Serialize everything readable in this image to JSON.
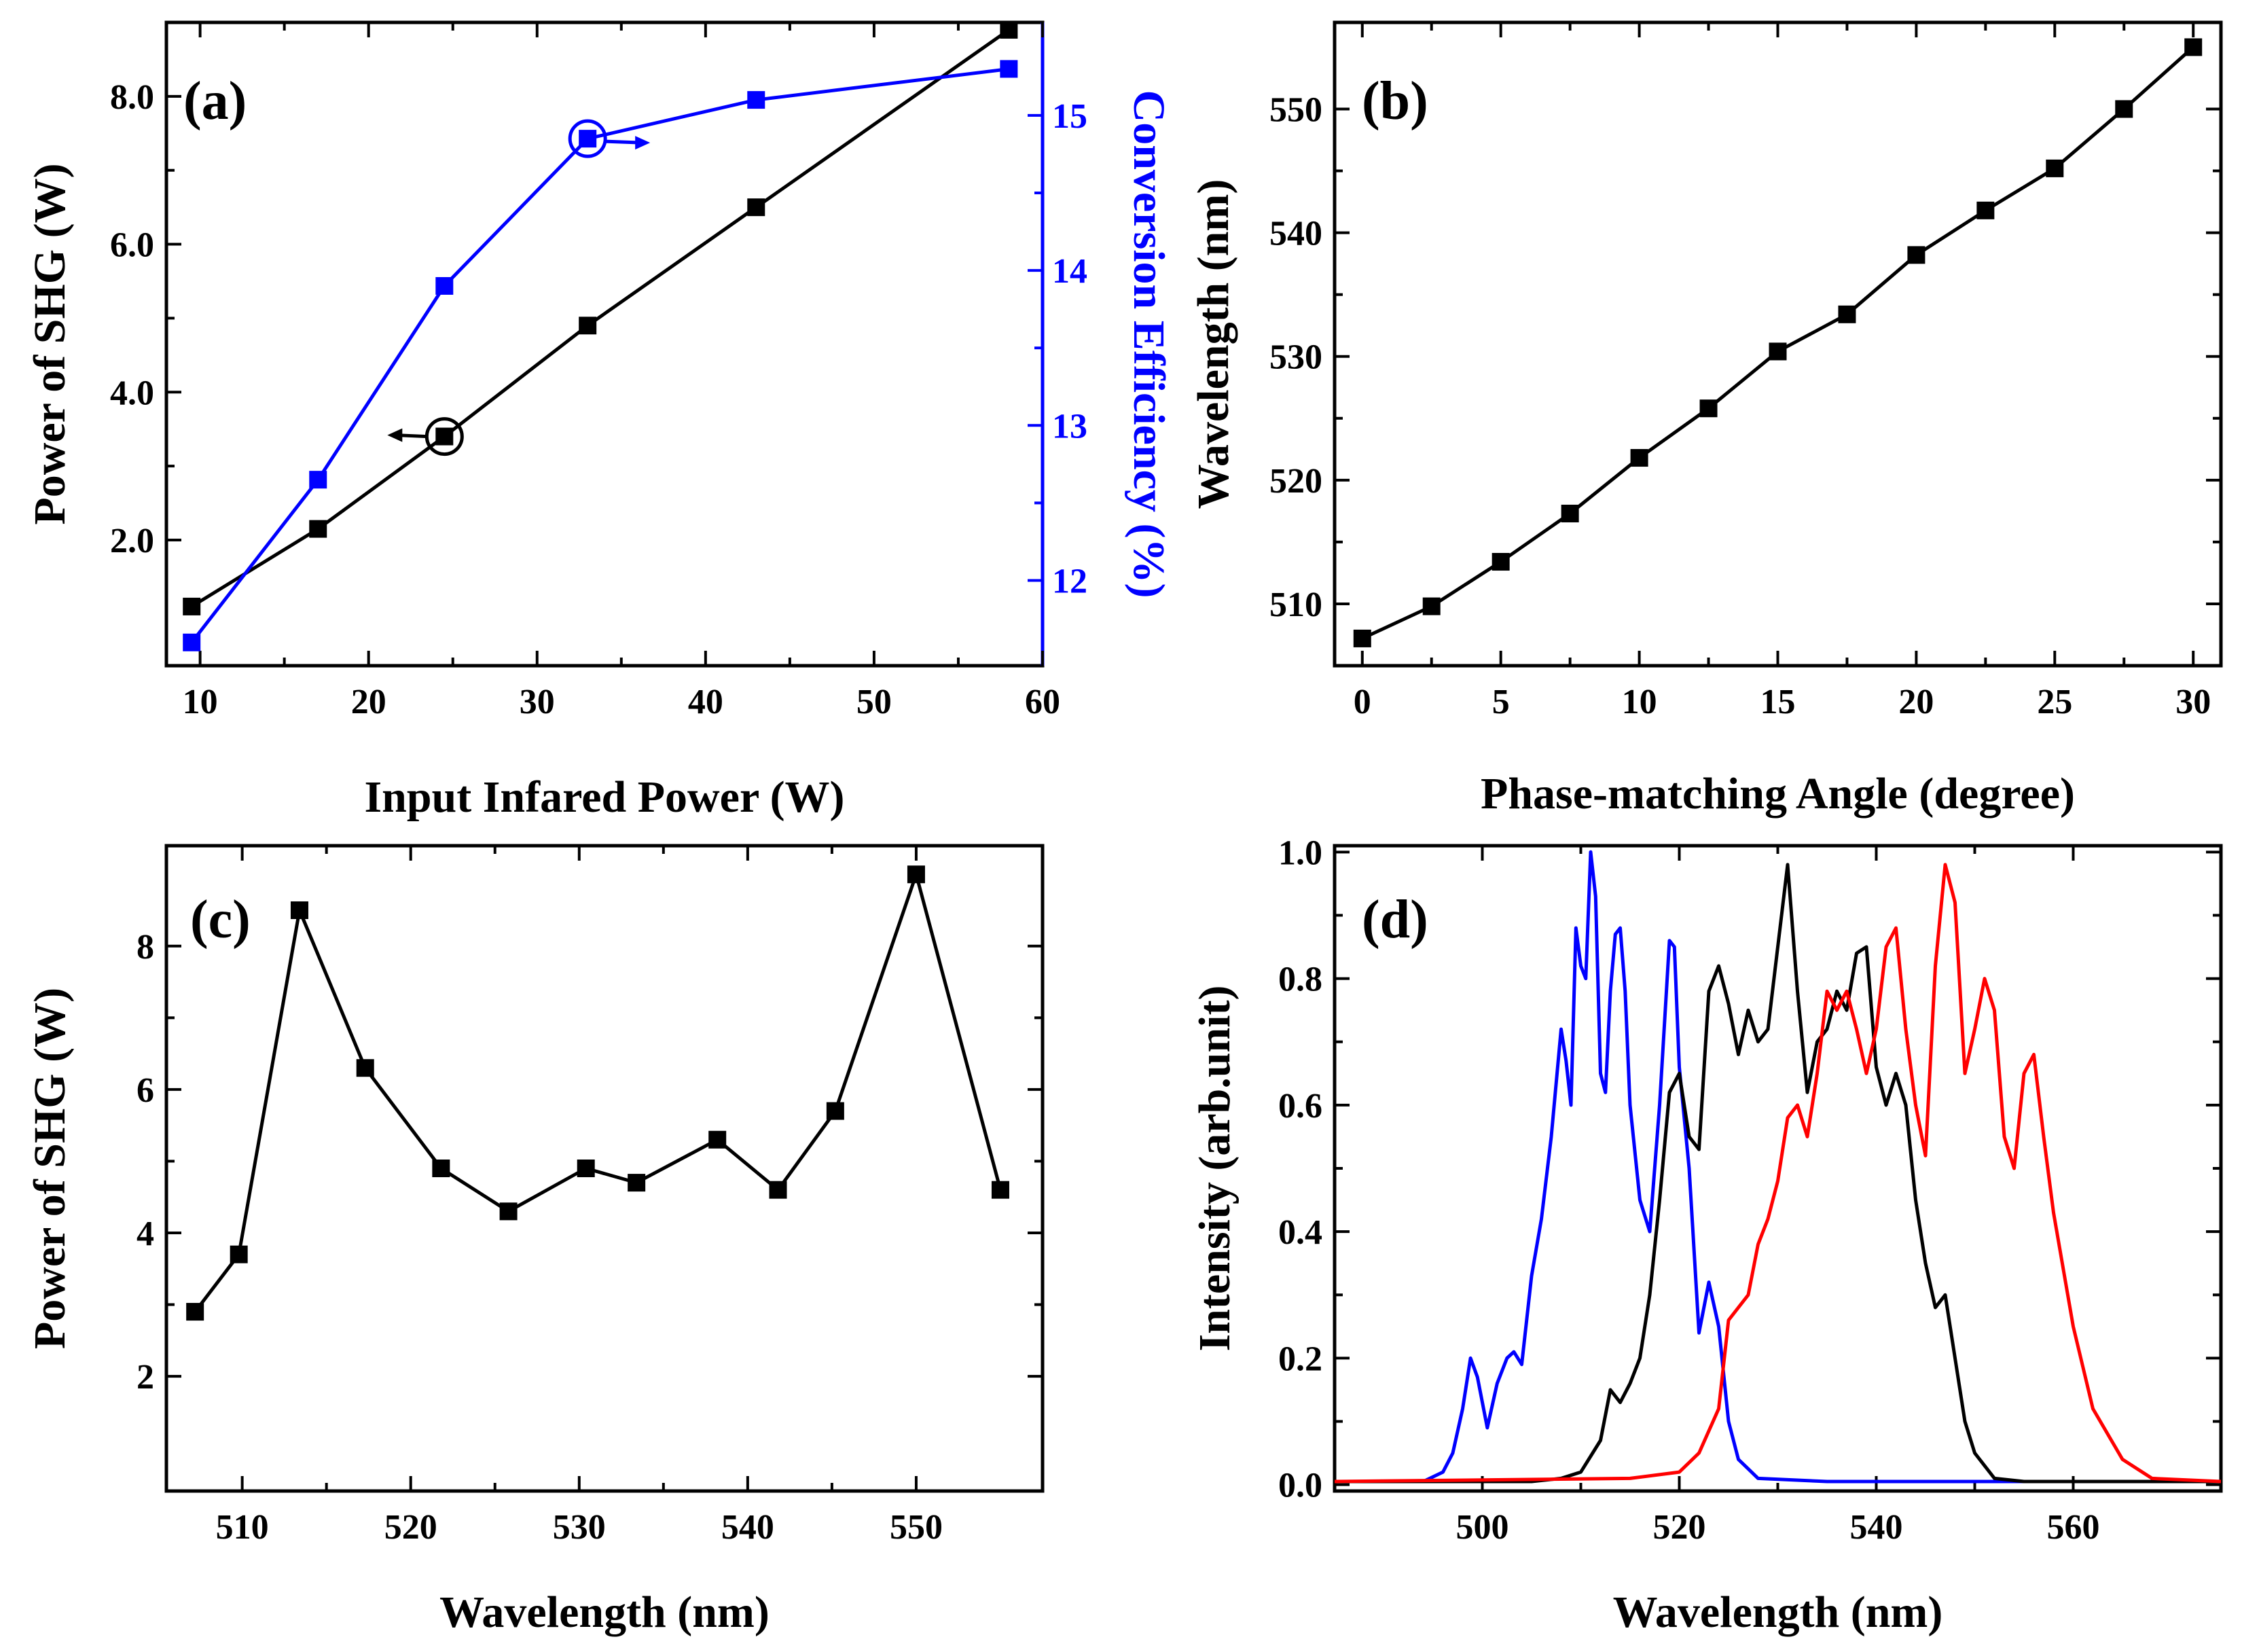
{
  "chart_data": [
    {
      "panel": "(a)",
      "type": "line",
      "xlabel": "Input Infared Power (W)",
      "ylabel": "Power of SHG (W)",
      "y2label": "Conversion Efficiency (%)",
      "xlim": [
        8,
        60
      ],
      "ylim": [
        0.3,
        9.0
      ],
      "y2lim": [
        11.45,
        15.6
      ],
      "xticks": [
        10,
        20,
        30,
        40,
        50,
        60
      ],
      "yticks": [
        2.0,
        4.0,
        6.0,
        8.0
      ],
      "yticklabels": [
        "2.0",
        "4.0",
        "6.0",
        "8.0"
      ],
      "y2ticks": [
        12,
        13,
        14,
        15
      ],
      "series": [
        {
          "axis": "left",
          "color": "#000000",
          "x": [
            9.5,
            17.0,
            24.5,
            33.0,
            43.0,
            58.0
          ],
          "y": [
            1.1,
            2.15,
            3.4,
            4.9,
            6.5,
            8.9
          ]
        },
        {
          "axis": "right",
          "color": "#0000ff",
          "x": [
            9.5,
            17.0,
            24.5,
            33.0,
            43.0,
            58.0
          ],
          "y": [
            11.6,
            12.65,
            13.9,
            14.85,
            15.1,
            15.3
          ]
        }
      ],
      "annotations": [
        {
          "target_axis": "left",
          "x": 24.5,
          "y": 3.4,
          "arrow": "left"
        },
        {
          "target_axis": "right",
          "x": 33.0,
          "y": 14.85,
          "arrow": "right"
        }
      ]
    },
    {
      "panel": "(b)",
      "type": "line",
      "xlabel": "Phase-matching Angle (degree)",
      "ylabel": "Wavelength (nm)",
      "xlim": [
        -1,
        31
      ],
      "ylim": [
        505,
        557
      ],
      "xticks": [
        0,
        5,
        10,
        15,
        20,
        25,
        30
      ],
      "yticks": [
        510,
        520,
        530,
        540,
        550
      ],
      "series": [
        {
          "color": "#000000",
          "x": [
            0,
            2.5,
            5,
            7.5,
            10,
            12.5,
            15,
            17.5,
            20,
            22.5,
            25,
            27.5,
            30
          ],
          "y": [
            507.2,
            509.8,
            513.4,
            517.3,
            521.8,
            525.8,
            530.4,
            533.4,
            538.2,
            541.8,
            545.2,
            550.0,
            555.0
          ]
        }
      ]
    },
    {
      "panel": "(c)",
      "type": "line",
      "xlabel": "Wavelength (nm)",
      "ylabel": "Power of SHG (W)",
      "xlim": [
        505.5,
        557.5
      ],
      "ylim": [
        0.4,
        9.4
      ],
      "xticks": [
        510,
        520,
        530,
        540,
        550
      ],
      "yticks": [
        2,
        4,
        6,
        8
      ],
      "series": [
        {
          "color": "#000000",
          "x": [
            507.2,
            509.8,
            513.4,
            517.3,
            521.8,
            525.8,
            530.4,
            533.4,
            538.2,
            541.8,
            545.2,
            550.0,
            555.0
          ],
          "y": [
            2.9,
            3.7,
            8.5,
            6.3,
            4.9,
            4.3,
            4.9,
            4.7,
            5.3,
            4.6,
            5.7,
            9.0,
            4.6
          ]
        }
      ]
    },
    {
      "panel": "(d)",
      "type": "line",
      "xlabel": "Wavelength (nm)",
      "ylabel": "Intensity (arb.unit)",
      "xlim": [
        485,
        575
      ],
      "ylim": [
        -0.01,
        1.01
      ],
      "xticks": [
        500,
        520,
        540,
        560
      ],
      "yticks": [
        0.0,
        0.2,
        0.4,
        0.6,
        0.8,
        1.0
      ],
      "yticklabels": [
        "0.0",
        "0.2",
        "0.4",
        "0.6",
        "0.8",
        "1.0"
      ],
      "series": [
        {
          "color": "#0000ff",
          "x": [
            485,
            494,
            496,
            497,
            498,
            498.8,
            499.5,
            500.5,
            501.5,
            502.5,
            503.2,
            504,
            505,
            506,
            507,
            508,
            508.5,
            509,
            509.5,
            510,
            510.5,
            511,
            511.5,
            512,
            512.5,
            513,
            513.5,
            514,
            514.5,
            515,
            516,
            517,
            518,
            519,
            519.5,
            520,
            521,
            522,
            523,
            524,
            525,
            526,
            528,
            535,
            575
          ],
          "y": [
            0.005,
            0.005,
            0.02,
            0.05,
            0.12,
            0.2,
            0.17,
            0.09,
            0.16,
            0.2,
            0.21,
            0.19,
            0.33,
            0.42,
            0.55,
            0.72,
            0.67,
            0.6,
            0.88,
            0.82,
            0.8,
            1.0,
            0.93,
            0.65,
            0.62,
            0.78,
            0.87,
            0.88,
            0.78,
            0.6,
            0.45,
            0.4,
            0.6,
            0.86,
            0.85,
            0.66,
            0.5,
            0.24,
            0.32,
            0.25,
            0.1,
            0.04,
            0.01,
            0.005,
            0.005
          ]
        },
        {
          "color": "#000000",
          "x": [
            485,
            505,
            508,
            510,
            512,
            513,
            514,
            515,
            516,
            517,
            518,
            519,
            520,
            521,
            522,
            523,
            524,
            525,
            526,
            527,
            528,
            529,
            530,
            531,
            532,
            533,
            534,
            535,
            536,
            537,
            538,
            539,
            540,
            541,
            542,
            543,
            544,
            545,
            546,
            547,
            548,
            549,
            550,
            552,
            555,
            575
          ],
          "y": [
            0.005,
            0.005,
            0.01,
            0.02,
            0.07,
            0.15,
            0.13,
            0.16,
            0.2,
            0.3,
            0.45,
            0.62,
            0.65,
            0.55,
            0.53,
            0.78,
            0.82,
            0.76,
            0.68,
            0.75,
            0.7,
            0.72,
            0.85,
            0.98,
            0.78,
            0.62,
            0.7,
            0.72,
            0.78,
            0.75,
            0.84,
            0.85,
            0.66,
            0.6,
            0.65,
            0.6,
            0.45,
            0.35,
            0.28,
            0.3,
            0.2,
            0.1,
            0.05,
            0.01,
            0.005,
            0.005
          ]
        },
        {
          "color": "#ff0000",
          "x": [
            485,
            515,
            520,
            522,
            524,
            525,
            526,
            527,
            528,
            529,
            530,
            531,
            532,
            533,
            534,
            535,
            536,
            537,
            538,
            539,
            540,
            541,
            542,
            543,
            544,
            545,
            546,
            547,
            548,
            549,
            550,
            551,
            552,
            553,
            554,
            555,
            556,
            557,
            558,
            560,
            562,
            565,
            568,
            575
          ],
          "y": [
            0.005,
            0.01,
            0.02,
            0.05,
            0.12,
            0.26,
            0.28,
            0.3,
            0.38,
            0.42,
            0.48,
            0.58,
            0.6,
            0.55,
            0.65,
            0.78,
            0.75,
            0.78,
            0.72,
            0.65,
            0.72,
            0.85,
            0.88,
            0.72,
            0.6,
            0.52,
            0.82,
            0.98,
            0.92,
            0.65,
            0.72,
            0.8,
            0.75,
            0.55,
            0.5,
            0.65,
            0.68,
            0.55,
            0.43,
            0.25,
            0.12,
            0.04,
            0.01,
            0.005
          ]
        }
      ]
    }
  ]
}
